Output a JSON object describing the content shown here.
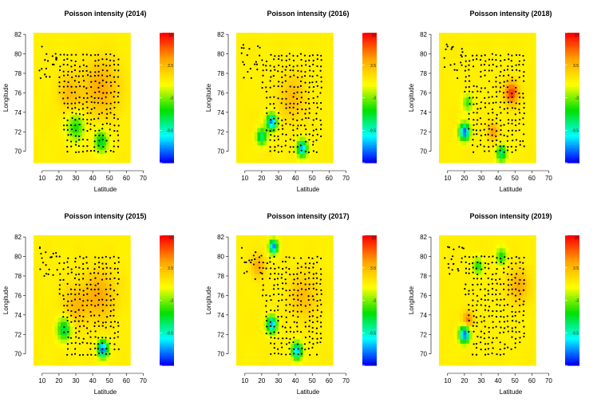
{
  "chart_data": [
    {
      "type": "heatmap",
      "title": "Poisson intensity (2014)",
      "xlabel": "Latitude",
      "ylabel": "Longitude",
      "xlim": [
        3,
        75
      ],
      "ylim": [
        68.5,
        82.5
      ],
      "xticks": [
        10,
        20,
        30,
        40,
        50,
        60,
        70
      ],
      "yticks": [
        70,
        72,
        74,
        76,
        78,
        80,
        82
      ],
      "colorbar_range": [
        -16,
        10
      ],
      "colorbar_ticks": [
        "10",
        "3.5",
        "-3",
        "-9.5",
        "-16"
      ],
      "colorscale": [
        "#0000ff",
        "#00ffff",
        "#00e000",
        "#ffff00",
        "#ffa500",
        "#ff0000"
      ],
      "hotspots": [
        {
          "x": 45,
          "y": 76.5,
          "value": 4,
          "spread": 10
        },
        {
          "x": 27,
          "y": 76,
          "value": 3,
          "spread": 7
        },
        {
          "x": 30,
          "y": 72.5,
          "value": -6,
          "spread": 5
        },
        {
          "x": 45,
          "y": 71,
          "value": -7,
          "spread": 4
        }
      ],
      "points_seed": 11
    },
    {
      "type": "heatmap",
      "title": "Poisson intensity (2016)",
      "xlabel": "Latitude",
      "ylabel": "Longitude",
      "xlim": [
        3,
        75
      ],
      "ylim": [
        68.5,
        82.5
      ],
      "xticks": [
        10,
        20,
        30,
        40,
        50,
        60,
        70
      ],
      "yticks": [
        70,
        72,
        74,
        76,
        78,
        80,
        82
      ],
      "colorbar_range": [
        -16,
        10
      ],
      "colorbar_ticks": [
        "10",
        "3.5",
        "-3",
        "-9.5",
        "-16"
      ],
      "colorscale": [
        "#0000ff",
        "#00ffff",
        "#00e000",
        "#ffff00",
        "#ffa500",
        "#ff0000"
      ],
      "hotspots": [
        {
          "x": 38,
          "y": 75.5,
          "value": 3,
          "spread": 8
        },
        {
          "x": 26,
          "y": 73,
          "value": -14,
          "spread": 3
        },
        {
          "x": 20,
          "y": 71.5,
          "value": -9,
          "spread": 3
        },
        {
          "x": 44,
          "y": 70.3,
          "value": -13,
          "spread": 3
        }
      ],
      "points_seed": 23
    },
    {
      "type": "heatmap",
      "title": "Poisson intensity (2018)",
      "xlabel": "Latitude",
      "ylabel": "Longitude",
      "xlim": [
        3,
        75
      ],
      "ylim": [
        68.5,
        82.5
      ],
      "xticks": [
        10,
        20,
        30,
        40,
        50,
        60,
        70
      ],
      "yticks": [
        70,
        72,
        74,
        76,
        78,
        80,
        82
      ],
      "colorbar_range": [
        -16,
        10
      ],
      "colorbar_ticks": [
        "10",
        "3.5",
        "-3",
        "-9.5",
        "-16"
      ],
      "colorscale": [
        "#0000ff",
        "#00ffff",
        "#00e000",
        "#ffff00",
        "#ffa500",
        "#ff0000"
      ],
      "hotspots": [
        {
          "x": 48,
          "y": 76,
          "value": 8,
          "spread": 4
        },
        {
          "x": 37,
          "y": 72,
          "value": 5,
          "spread": 3
        },
        {
          "x": 20,
          "y": 72,
          "value": -15,
          "spread": 3
        },
        {
          "x": 42,
          "y": 69.8,
          "value": -9,
          "spread": 3
        },
        {
          "x": 22,
          "y": 75,
          "value": -5,
          "spread": 3
        }
      ],
      "points_seed": 37
    },
    {
      "type": "heatmap",
      "title": "Poisson intensity (2015)",
      "xlabel": "Latitude",
      "ylabel": "Longitude",
      "xlim": [
        3,
        75
      ],
      "ylim": [
        68.5,
        82.5
      ],
      "xticks": [
        10,
        20,
        30,
        40,
        50,
        60,
        70
      ],
      "yticks": [
        70,
        72,
        74,
        76,
        78,
        80,
        82
      ],
      "colorbar_range": [
        -16,
        10
      ],
      "colorbar_ticks": [
        "10",
        "3.5",
        "-3",
        "-9.5",
        "-16"
      ],
      "colorscale": [
        "#0000ff",
        "#00ffff",
        "#00e000",
        "#ffff00",
        "#ffa500",
        "#ff0000"
      ],
      "hotspots": [
        {
          "x": 44,
          "y": 76,
          "value": 4,
          "spread": 9
        },
        {
          "x": 30,
          "y": 75,
          "value": 3,
          "spread": 7
        },
        {
          "x": 46,
          "y": 70.5,
          "value": -15,
          "spread": 3
        },
        {
          "x": 23,
          "y": 72.5,
          "value": -8,
          "spread": 4
        }
      ],
      "points_seed": 53
    },
    {
      "type": "heatmap",
      "title": "Poisson intensity (2017)",
      "xlabel": "Latitude",
      "ylabel": "Longitude",
      "xlim": [
        3,
        75
      ],
      "ylim": [
        68.5,
        82.5
      ],
      "xticks": [
        10,
        20,
        30,
        40,
        50,
        60,
        70
      ],
      "yticks": [
        70,
        72,
        74,
        76,
        78,
        80,
        82
      ],
      "colorbar_range": [
        -16,
        10
      ],
      "colorbar_ticks": [
        "10",
        "3.5",
        "-3",
        "-9.5",
        "-16"
      ],
      "colorscale": [
        "#0000ff",
        "#00ffff",
        "#00e000",
        "#ffff00",
        "#ffa500",
        "#ff0000"
      ],
      "hotspots": [
        {
          "x": 18,
          "y": 79,
          "value": 4,
          "spread": 4
        },
        {
          "x": 45,
          "y": 76,
          "value": 3,
          "spread": 8
        },
        {
          "x": 27,
          "y": 81,
          "value": -14,
          "spread": 2.5
        },
        {
          "x": 26,
          "y": 73,
          "value": -13,
          "spread": 3
        },
        {
          "x": 41,
          "y": 70.3,
          "value": -13,
          "spread": 3
        }
      ],
      "points_seed": 71
    },
    {
      "type": "heatmap",
      "title": "Poisson intensity (2019)",
      "xlabel": "Latitude",
      "ylabel": "Longitude",
      "xlim": [
        3,
        75
      ],
      "ylim": [
        68.5,
        82.5
      ],
      "xticks": [
        10,
        20,
        30,
        40,
        50,
        60,
        70
      ],
      "yticks": [
        70,
        72,
        74,
        76,
        78,
        80,
        82
      ],
      "colorbar_range": [
        -16,
        10
      ],
      "colorbar_ticks": [
        "10",
        "3.5",
        "-3",
        "-9.5",
        "-16"
      ],
      "colorscale": [
        "#0000ff",
        "#00ffff",
        "#00e000",
        "#ffff00",
        "#ffa500",
        "#ff0000"
      ],
      "hotspots": [
        {
          "x": 52,
          "y": 77,
          "value": 4,
          "spread": 6
        },
        {
          "x": 22,
          "y": 73.5,
          "value": 6,
          "spread": 3
        },
        {
          "x": 20,
          "y": 72,
          "value": -15,
          "spread": 3
        },
        {
          "x": 42,
          "y": 80,
          "value": -6,
          "spread": 3
        },
        {
          "x": 28,
          "y": 79,
          "value": -6,
          "spread": 3
        }
      ],
      "points_seed": 97
    }
  ]
}
